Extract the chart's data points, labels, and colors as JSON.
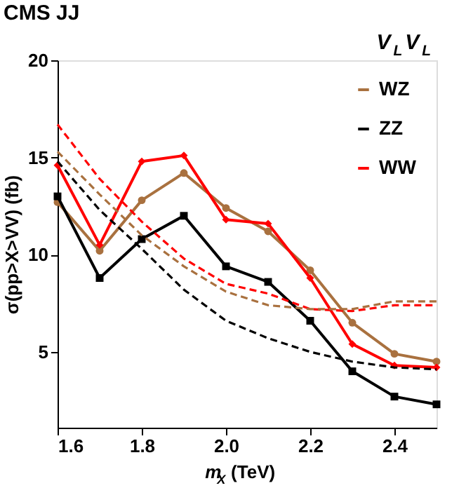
{
  "chart_data": {
    "type": "line",
    "title": "CMS JJ",
    "annotations": [
      "V$_{L}$V$_{L}$"
    ],
    "xlabel": "m$_{X}$ (TeV)",
    "ylabel": "σ(pp>X>VV) (fb)",
    "x": [
      1.6,
      1.7,
      1.8,
      1.9,
      2.0,
      2.1,
      2.2,
      2.3,
      2.4,
      2.5
    ],
    "series": [
      {
        "name": "WZ",
        "color": "#a9713f",
        "marker": "circle",
        "line_style": "solid",
        "values": [
          12.7,
          10.2,
          12.8,
          14.2,
          12.4,
          11.2,
          9.2,
          6.5,
          4.9,
          4.5
        ]
      },
      {
        "name": "ZZ",
        "color": "#000000",
        "marker": "square",
        "line_style": "solid",
        "values": [
          13.0,
          8.8,
          10.8,
          12.0,
          9.4,
          8.6,
          6.6,
          4.0,
          2.7,
          2.3
        ]
      },
      {
        "name": "WW",
        "color": "#ff0000",
        "marker": "diamond",
        "line_style": "solid",
        "values": [
          14.6,
          10.5,
          14.8,
          15.1,
          11.8,
          11.6,
          8.8,
          5.4,
          4.3,
          4.2
        ]
      },
      {
        "color": "#ff0000",
        "marker": "none",
        "line_style": "dashed",
        "values": [
          16.7,
          13.9,
          11.7,
          9.8,
          8.5,
          8.0,
          7.2,
          7.1,
          7.4,
          7.4
        ]
      },
      {
        "color": "#a9713f",
        "marker": "none",
        "line_style": "dashed",
        "values": [
          15.3,
          13.1,
          11.0,
          9.4,
          8.1,
          7.4,
          7.2,
          7.2,
          7.6,
          7.6
        ]
      },
      {
        "color": "#000000",
        "marker": "none",
        "line_style": "dashed",
        "values": [
          14.8,
          12.3,
          10.3,
          8.2,
          6.6,
          5.7,
          5.0,
          4.5,
          4.2,
          4.1
        ]
      }
    ],
    "xlim": [
      1.6,
      2.5
    ],
    "ylim": [
      1.1,
      20
    ],
    "xticks": [
      1.6,
      1.8,
      {
        "value": 2.0,
        "label": "2.0"
      },
      2.2,
      2.4
    ],
    "yticks": [
      5,
      10,
      15,
      20
    ],
    "grid": false,
    "legend": "top right"
  }
}
